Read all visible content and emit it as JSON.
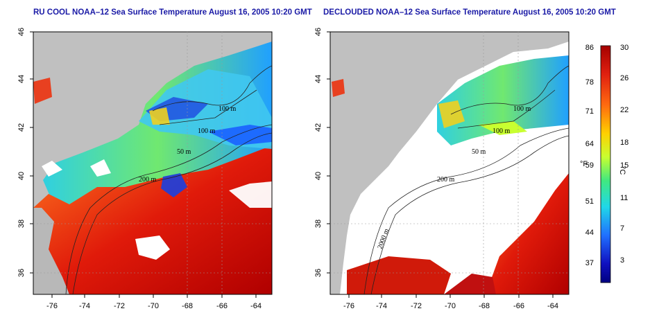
{
  "panels": [
    {
      "title": "RU COOL NOAA–12 Sea Surface Temperature August 16, 2005 10:20 GMT"
    },
    {
      "title": "DECLOUDED NOAA–12 Sea Surface Temperature August 16, 2005 10:20 GMT"
    }
  ],
  "axes": {
    "x_ticks": [
      "-76",
      "-74",
      "-72",
      "-70",
      "-68",
      "-66",
      "-64"
    ],
    "y_ticks": [
      "36",
      "38",
      "40",
      "42",
      "44",
      "46"
    ]
  },
  "contour_labels": [
    "100 m",
    "100 m",
    "50 m",
    "200 m",
    "50 m",
    "2000 m"
  ],
  "colorbar": {
    "unit_f": "°F",
    "unit_c": "°C",
    "f_ticks": [
      "86",
      "78",
      "71",
      "64",
      "59",
      "51",
      "44",
      "37"
    ],
    "c_ticks": [
      "30",
      "26",
      "22",
      "18",
      "15",
      "11",
      "7",
      "3"
    ],
    "colors": [
      "#a50000",
      "#e02010",
      "#ff6a10",
      "#ffd000",
      "#c8ff30",
      "#40e880",
      "#20d8e8",
      "#2070ff",
      "#1010c0",
      "#000080"
    ]
  }
}
